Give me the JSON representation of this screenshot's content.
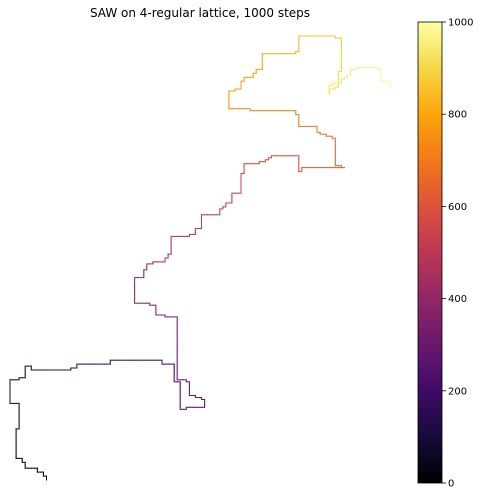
{
  "chart_data": {
    "type": "line",
    "title": "SAW on 4-regular lattice, 1000 steps",
    "xlabel": "",
    "ylabel": "",
    "axes_visible": false,
    "grid": false,
    "legend": "none",
    "path_anchors": [
      {
        "step": 0,
        "x": 12,
        "y": 52
      },
      {
        "step": 30,
        "x": 2,
        "y": 78
      },
      {
        "step": 60,
        "x": 3,
        "y": 88
      },
      {
        "step": 90,
        "x": 0,
        "y": 103
      },
      {
        "step": 120,
        "x": 7,
        "y": 110
      },
      {
        "step": 150,
        "x": 19,
        "y": 108
      },
      {
        "step": 180,
        "x": 33,
        "y": 111
      },
      {
        "step": 210,
        "x": 48,
        "y": 113
      },
      {
        "step": 240,
        "x": 54,
        "y": 103
      },
      {
        "step": 270,
        "x": 56,
        "y": 88
      },
      {
        "step": 300,
        "x": 64,
        "y": 89
      },
      {
        "step": 330,
        "x": 59,
        "y": 102
      },
      {
        "step": 360,
        "x": 55,
        "y": 121
      },
      {
        "step": 390,
        "x": 55,
        "y": 135
      },
      {
        "step": 420,
        "x": 48,
        "y": 138
      },
      {
        "step": 450,
        "x": 41,
        "y": 155
      },
      {
        "step": 480,
        "x": 51,
        "y": 164
      },
      {
        "step": 510,
        "x": 53,
        "y": 176
      },
      {
        "step": 540,
        "x": 63,
        "y": 186
      },
      {
        "step": 570,
        "x": 73,
        "y": 198
      },
      {
        "step": 600,
        "x": 77,
        "y": 212
      },
      {
        "step": 630,
        "x": 93,
        "y": 217
      },
      {
        "step": 660,
        "x": 96,
        "y": 209
      },
      {
        "step": 690,
        "x": 110,
        "y": 211
      },
      {
        "step": 720,
        "x": 107,
        "y": 224
      },
      {
        "step": 750,
        "x": 98,
        "y": 232
      },
      {
        "step": 780,
        "x": 79,
        "y": 240
      },
      {
        "step": 810,
        "x": 72,
        "y": 250
      },
      {
        "step": 840,
        "x": 81,
        "y": 260
      },
      {
        "step": 870,
        "x": 92,
        "y": 269
      },
      {
        "step": 900,
        "x": 107,
        "y": 278
      },
      {
        "step": 930,
        "x": 109,
        "y": 260
      },
      {
        "step": 960,
        "x": 105,
        "y": 248
      },
      {
        "step": 980,
        "x": 115,
        "y": 262
      },
      {
        "step": 1000,
        "x": 125,
        "y": 250
      }
    ],
    "colorbar": {
      "colormap": "inferno",
      "range": [
        0,
        1000
      ],
      "ticks": [
        "0",
        "200",
        "400",
        "600",
        "800",
        "1000"
      ]
    }
  }
}
